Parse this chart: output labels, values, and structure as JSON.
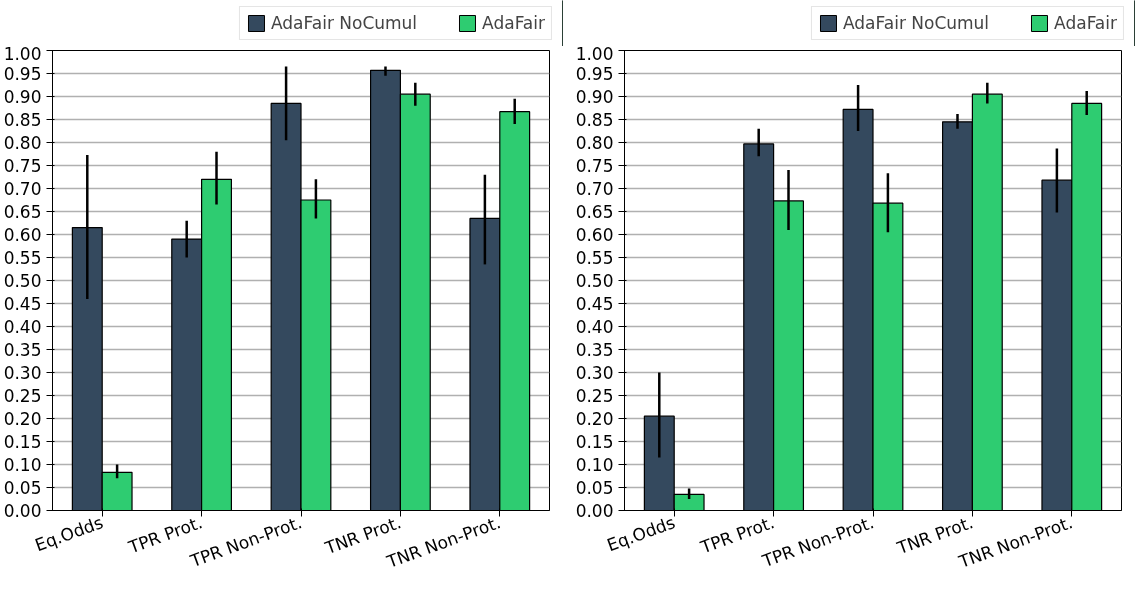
{
  "chart_data": [
    {
      "type": "bar",
      "categories": [
        "Eq.Odds",
        "TPR Prot.",
        "TPR Non-Prot.",
        "TNR Prot.",
        "TNR Non-Prot."
      ],
      "ylim": [
        0,
        1.0
      ],
      "yticks": [
        {
          "value": 0,
          "label": "0.00"
        },
        {
          "value": 0.05,
          "label": "0.05"
        },
        {
          "value": 0.1,
          "label": "0.10"
        },
        {
          "value": 0.15,
          "label": "0.15"
        },
        {
          "value": 0.2,
          "label": "0.20"
        },
        {
          "value": 0.25,
          "label": "0.25"
        },
        {
          "value": 0.3,
          "label": "0.30"
        },
        {
          "value": 0.35,
          "label": "0.35"
        },
        {
          "value": 0.4,
          "label": "0.40"
        },
        {
          "value": 0.45,
          "label": "0.45"
        },
        {
          "value": 0.5,
          "label": "0.50"
        },
        {
          "value": 0.55,
          "label": "0.55"
        },
        {
          "value": 0.6,
          "label": "0.60"
        },
        {
          "value": 0.65,
          "label": "0.65"
        },
        {
          "value": 0.7,
          "label": "0.70"
        },
        {
          "value": 0.75,
          "label": "0.75"
        },
        {
          "value": 0.8,
          "label": "0.80"
        },
        {
          "value": 0.85,
          "label": "0.85"
        },
        {
          "value": 0.9,
          "label": "0.90"
        },
        {
          "value": 0.95,
          "label": "0.95"
        },
        {
          "value": 1.0,
          "label": "1.00"
        }
      ],
      "grid": "y",
      "legend": "top",
      "series": [
        {
          "name": "AdaFair NoCumul",
          "color": "#34495e",
          "values": [
            0.615,
            0.59,
            0.885,
            0.957,
            0.635
          ],
          "errors": [
            [
              0.46,
              0.773
            ],
            [
              0.55,
              0.63
            ],
            [
              0.805,
              0.965
            ],
            [
              0.945,
              0.965
            ],
            [
              0.535,
              0.73
            ]
          ]
        },
        {
          "name": "AdaFair",
          "color": "#2ecc71",
          "values": [
            0.083,
            0.72,
            0.675,
            0.905,
            0.867
          ],
          "errors": [
            [
              0.07,
              0.1
            ],
            [
              0.665,
              0.78
            ],
            [
              0.635,
              0.72
            ],
            [
              0.88,
              0.93
            ],
            [
              0.84,
              0.895
            ]
          ]
        }
      ]
    },
    {
      "type": "bar",
      "categories": [
        "Eq.Odds",
        "TPR Prot.",
        "TPR Non-Prot.",
        "TNR Prot.",
        "TNR Non-Prot."
      ],
      "ylim": [
        0,
        1.0
      ],
      "yticks": [
        {
          "value": 0,
          "label": "0.00"
        },
        {
          "value": 0.05,
          "label": "0.05"
        },
        {
          "value": 0.1,
          "label": "0.10"
        },
        {
          "value": 0.15,
          "label": "0.15"
        },
        {
          "value": 0.2,
          "label": "0.20"
        },
        {
          "value": 0.25,
          "label": "0.25"
        },
        {
          "value": 0.3,
          "label": "0.30"
        },
        {
          "value": 0.35,
          "label": "0.35"
        },
        {
          "value": 0.4,
          "label": "0.40"
        },
        {
          "value": 0.45,
          "label": "0.45"
        },
        {
          "value": 0.5,
          "label": "0.50"
        },
        {
          "value": 0.55,
          "label": "0.55"
        },
        {
          "value": 0.6,
          "label": "0.60"
        },
        {
          "value": 0.65,
          "label": "0.65"
        },
        {
          "value": 0.7,
          "label": "0.70"
        },
        {
          "value": 0.75,
          "label": "0.75"
        },
        {
          "value": 0.8,
          "label": "0.80"
        },
        {
          "value": 0.85,
          "label": "0.85"
        },
        {
          "value": 0.9,
          "label": "0.90"
        },
        {
          "value": 0.95,
          "label": "0.95"
        },
        {
          "value": 1.0,
          "label": "1.00"
        }
      ],
      "grid": "y",
      "legend": "top",
      "series": [
        {
          "name": "AdaFair NoCumul",
          "color": "#34495e",
          "values": [
            0.205,
            0.797,
            0.872,
            0.845,
            0.718
          ],
          "errors": [
            [
              0.115,
              0.3
            ],
            [
              0.77,
              0.83
            ],
            [
              0.825,
              0.925
            ],
            [
              0.83,
              0.862
            ],
            [
              0.648,
              0.787
            ]
          ]
        },
        {
          "name": "AdaFair",
          "color": "#2ecc71",
          "values": [
            0.035,
            0.673,
            0.668,
            0.905,
            0.885
          ],
          "errors": [
            [
              0.025,
              0.048
            ],
            [
              0.61,
              0.74
            ],
            [
              0.605,
              0.733
            ],
            [
              0.885,
              0.93
            ],
            [
              0.86,
              0.912
            ]
          ]
        }
      ]
    }
  ]
}
